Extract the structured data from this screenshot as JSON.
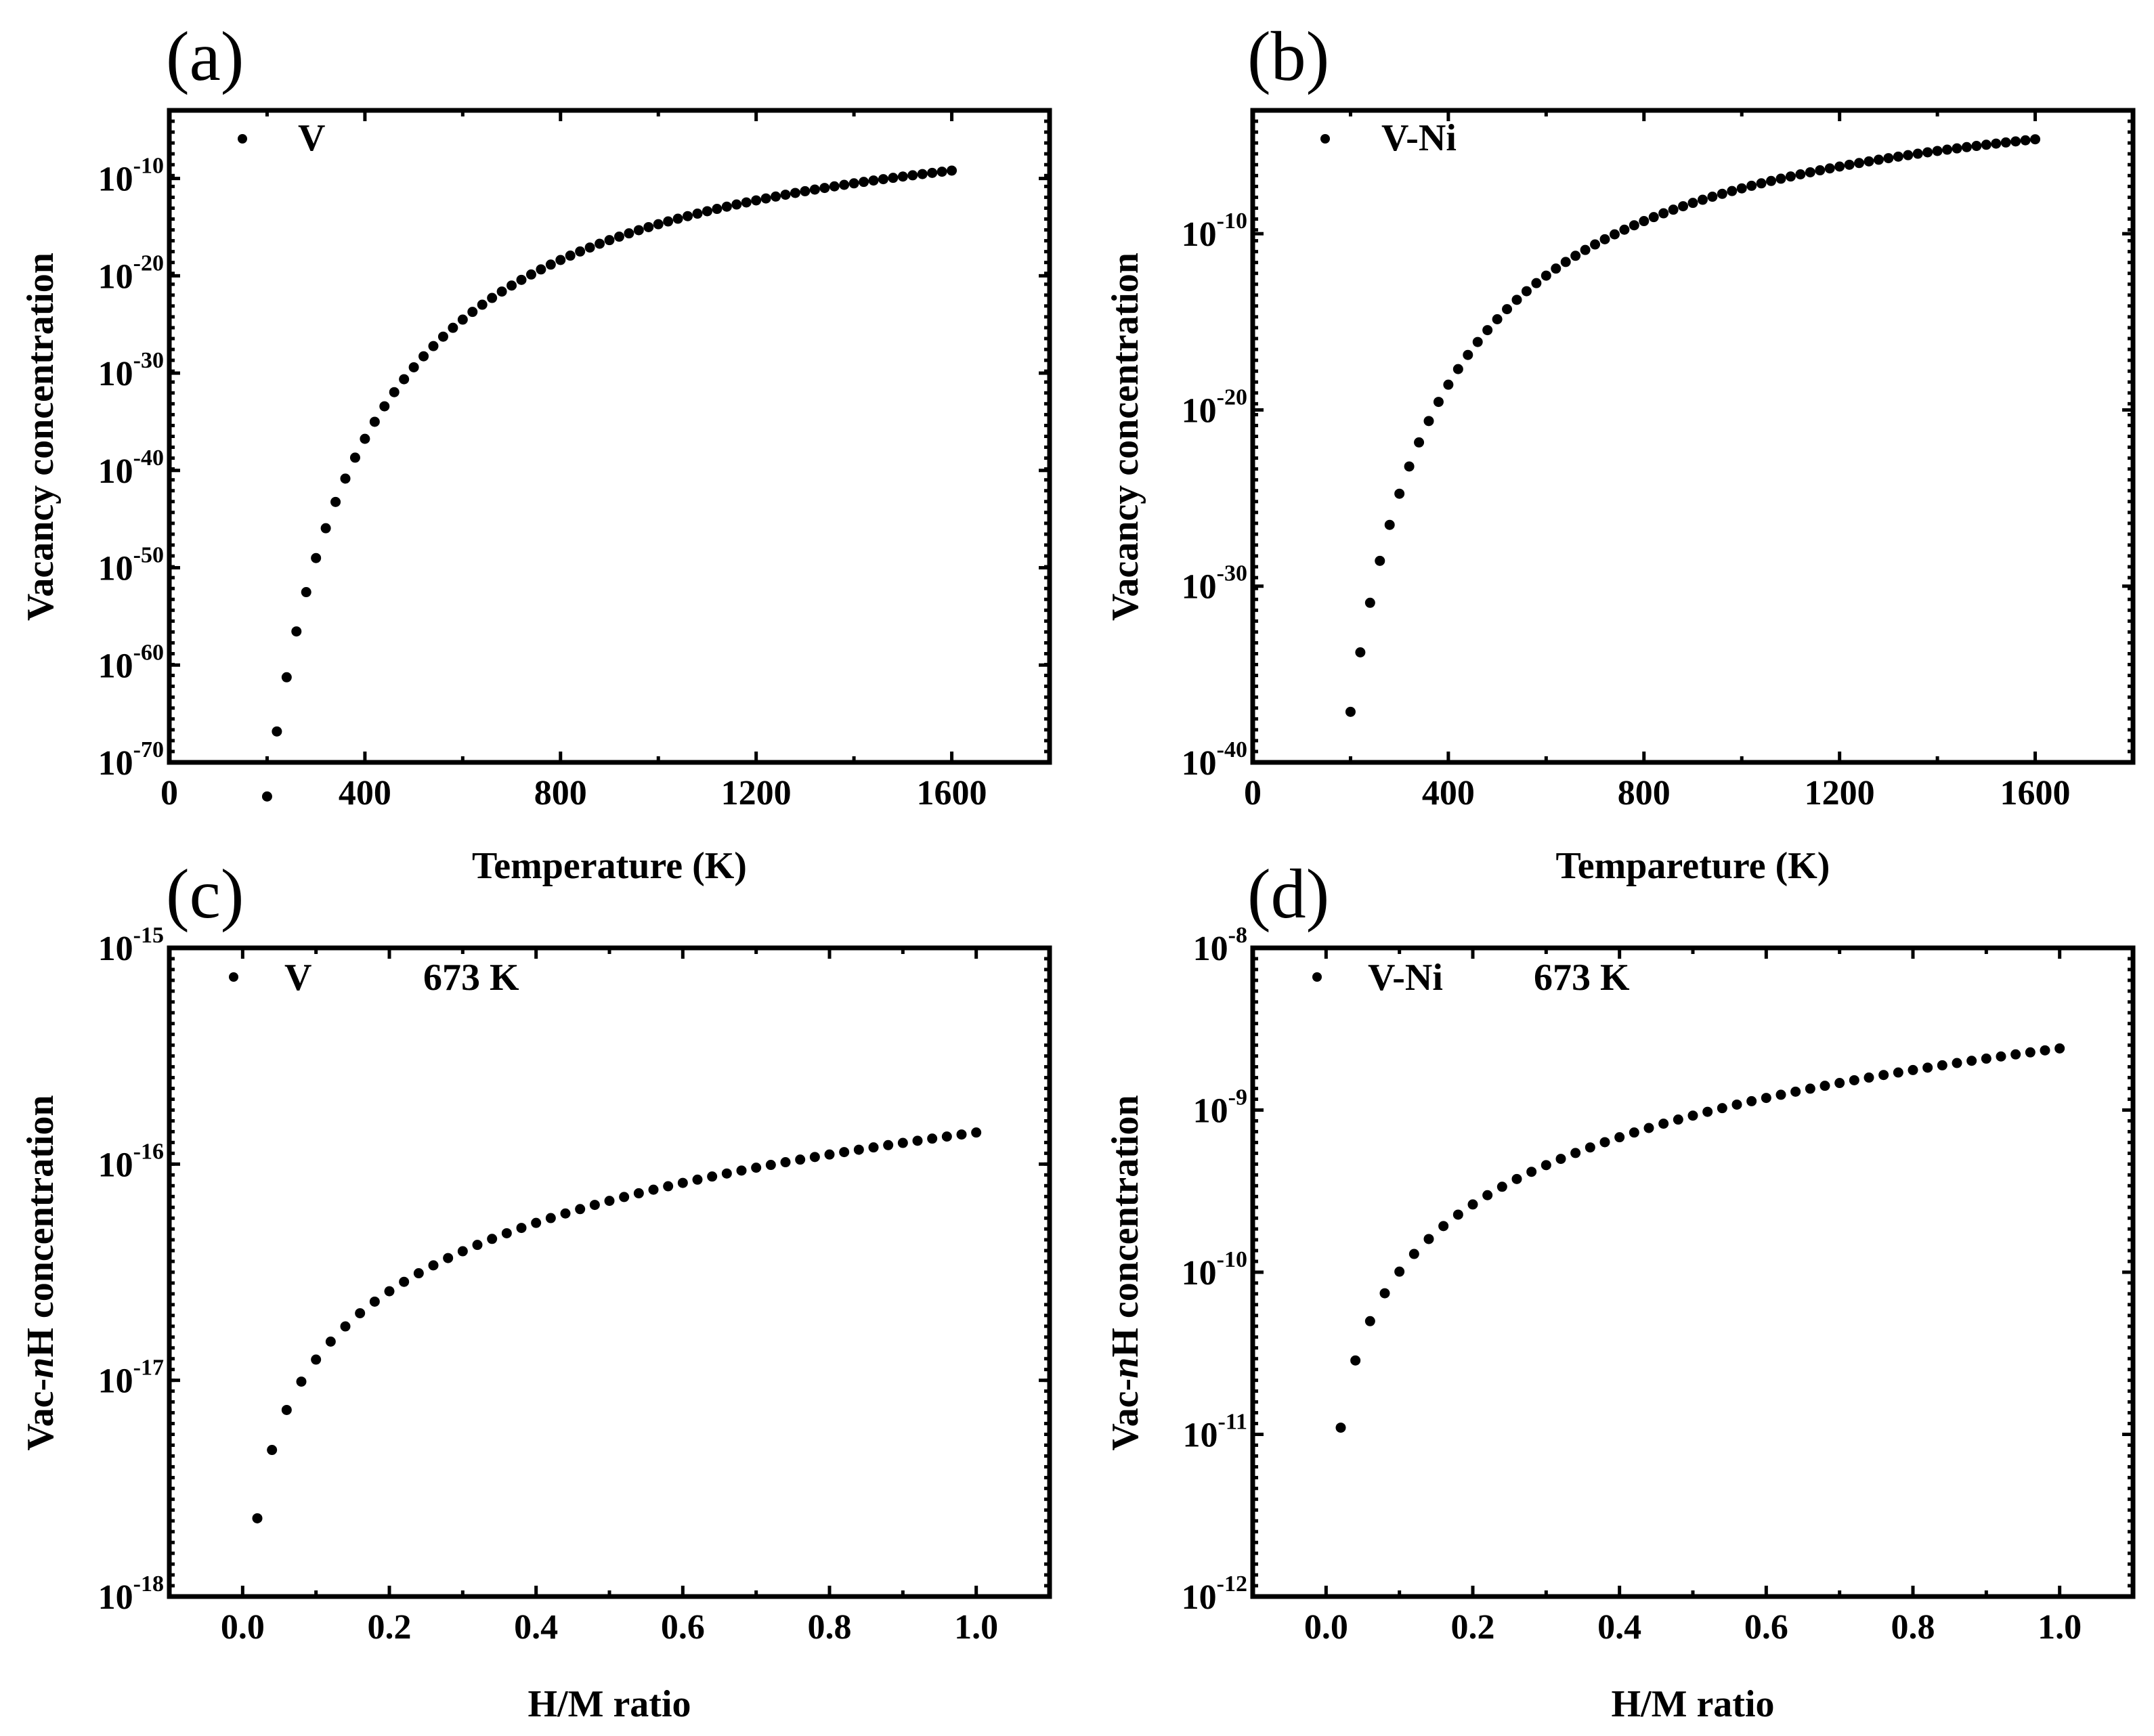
{
  "figure": {
    "panels": [
      {
        "id": "a",
        "label": "(a)",
        "xlabel": "Temperature (K)",
        "ylabel": "Vacancy concentration",
        "legend": [
          "V"
        ],
        "legend_extra": ""
      },
      {
        "id": "b",
        "label": "(b)",
        "xlabel": "Tempareture (K)",
        "ylabel": "Vacancy concentration",
        "legend": [
          "V-Ni"
        ],
        "legend_extra": ""
      },
      {
        "id": "c",
        "label": "(c)",
        "xlabel": "H/M ratio",
        "ylabel_prefix": "Vac-",
        "ylabel_italic": "n",
        "ylabel_suffix": "H concentration",
        "legend": [
          "V"
        ],
        "legend_extra": "673 K"
      },
      {
        "id": "d",
        "label": "(d)",
        "xlabel": "H/M ratio",
        "ylabel_prefix": "Vac-",
        "ylabel_italic": "n",
        "ylabel_suffix": "H concentration",
        "legend": [
          "V-Ni"
        ],
        "legend_extra": "673 K"
      }
    ]
  },
  "chart_data": [
    {
      "panel": "a",
      "type": "scatter",
      "title": "",
      "xlabel": "Temperature (K)",
      "ylabel": "Vacancy concentration",
      "xlim": [
        0,
        1800
      ],
      "xticks": [
        0,
        400,
        800,
        1200,
        1600
      ],
      "yscale": "log",
      "ylim_exp": [
        -70,
        -3
      ],
      "yticks_exp": [
        -70,
        -60,
        -50,
        -40,
        -30,
        -20,
        -10
      ],
      "series": [
        {
          "name": "V",
          "Ea_over_k": 33850,
          "points": "T = 200..1600 K step 20; c = exp(-Ea_over_k / T)"
        }
      ]
    },
    {
      "panel": "b",
      "type": "scatter",
      "title": "",
      "xlabel": "Tempareture (K)",
      "ylabel": "Vacancy concentration",
      "xlim": [
        0,
        1800
      ],
      "xticks": [
        0,
        400,
        800,
        1200,
        1600
      ],
      "yscale": "log",
      "ylim_exp": [
        -40,
        -3
      ],
      "yticks_exp": [
        -40,
        -30,
        -20,
        -10
      ],
      "series": [
        {
          "name": "V-Ni",
          "Ea_over_k": 17100,
          "points": "T = 200..1600 K step 20; c = exp(-Ea_over_k / T)"
        }
      ]
    },
    {
      "panel": "c",
      "type": "scatter",
      "title": "",
      "xlabel": "H/M ratio",
      "ylabel": "Vac-nH concentration",
      "annotation": "673 K",
      "xlim": [
        -0.1,
        1.1
      ],
      "xticks": [
        0.0,
        0.2,
        0.4,
        0.6,
        0.8,
        1.0
      ],
      "xtick_labels": [
        "0.0",
        "0.2",
        "0.4",
        "0.6",
        "0.8",
        "1.0"
      ],
      "yscale": "log",
      "ylim_exp": [
        -18,
        -15
      ],
      "yticks_exp": [
        -18,
        -17,
        -16,
        -15
      ],
      "series": [
        {
          "name": "V",
          "points": "x = 0.02..1.00 step 0.02",
          "y_at_0.02": 2.3e-18,
          "y_at_1.00": 1.4e-16
        }
      ]
    },
    {
      "panel": "d",
      "type": "scatter",
      "title": "",
      "xlabel": "H/M ratio",
      "ylabel": "Vac-nH concentration",
      "annotation": "673 K",
      "xlim": [
        -0.1,
        1.1
      ],
      "xticks": [
        0.0,
        0.2,
        0.4,
        0.6,
        0.8,
        1.0
      ],
      "xtick_labels": [
        "0.0",
        "0.2",
        "0.4",
        "0.6",
        "0.8",
        "1.0"
      ],
      "yscale": "log",
      "ylim_exp": [
        -12,
        -8
      ],
      "yticks_exp": [
        -12,
        -11,
        -10,
        -9,
        -8
      ],
      "series": [
        {
          "name": "V-Ni",
          "points": "x = 0.02..1.00 step 0.02",
          "y_at_0.02": 1.1e-11,
          "y_at_1.00": 2.4e-09
        }
      ]
    }
  ]
}
